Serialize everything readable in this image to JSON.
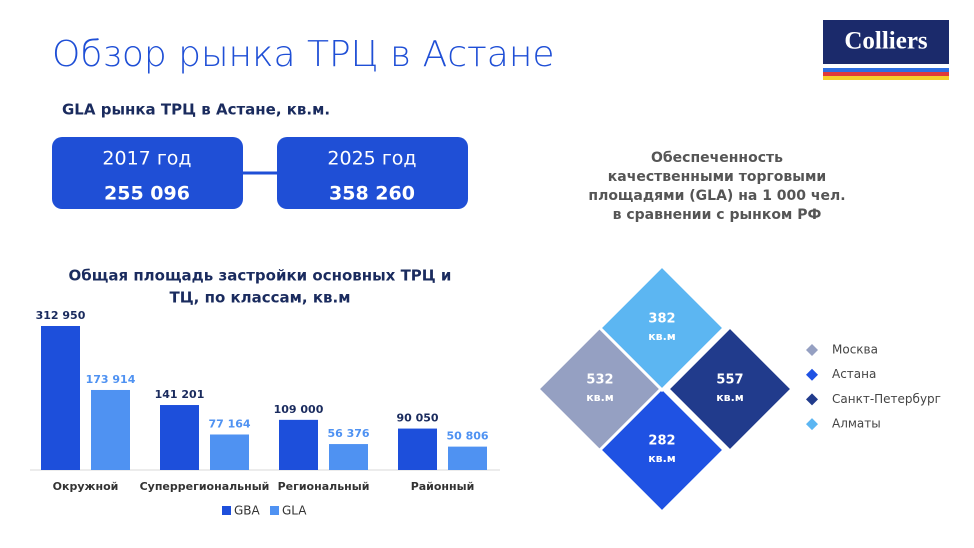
{
  "title": "Обзор рынка ТРЦ в Астане",
  "logo": "Colliers",
  "gla": {
    "heading": "GLA рынка ТРЦ в Астане, кв.м.",
    "boxes": [
      {
        "year": "2017 год",
        "value": "255 096"
      },
      {
        "year": "2025 год",
        "value": "358 260"
      }
    ]
  },
  "chart_data": [
    {
      "type": "bar",
      "title_lines": [
        "Общая площадь застройки основных ТРЦ и",
        "ТЦ, по классам, кв.м"
      ],
      "categories": [
        "Окружной",
        "Суперрегиональный",
        "Региональный",
        "Районный"
      ],
      "series": [
        {
          "name": "GBA",
          "color": "#1d4fdb",
          "values": [
            312950,
            141201,
            109000,
            90050
          ],
          "value_labels": [
            "312 950",
            "141 201",
            "109 000",
            "90 050"
          ]
        },
        {
          "name": "GLA",
          "color": "#4f92f2",
          "values": [
            173914,
            77164,
            56376,
            50806
          ],
          "value_labels": [
            "173 914",
            "77 164",
            "56 376",
            "50 806"
          ]
        }
      ]
    },
    {
      "type": "diamond",
      "title_lines": [
        "Обеспеченность",
        "качественными торговыми",
        "площадями (GLA) на 1 000 чел.",
        "в сравнении с рынком РФ"
      ],
      "unit": "кв.м",
      "categories": [
        "Москва",
        "Астана",
        "Санкт-Петербург",
        "Алматы"
      ],
      "values": [
        532,
        282,
        557,
        382
      ],
      "colors": [
        "#95a0c2",
        "#1f52e3",
        "#213b8c",
        "#5cb6f2"
      ]
    }
  ]
}
